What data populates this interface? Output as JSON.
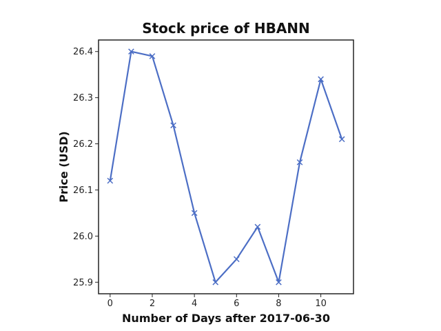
{
  "chart_data": {
    "type": "line",
    "title": "Stock price of HBANN",
    "xlabel": "Number of Days after 2017-06-30",
    "ylabel": "Price (USD)",
    "x": [
      0,
      1,
      2,
      3,
      4,
      5,
      6,
      7,
      8,
      9,
      10,
      11
    ],
    "series": [
      {
        "values": [
          26.12,
          26.4,
          26.39,
          26.24,
          26.05,
          25.9,
          25.95,
          26.02,
          25.9,
          26.16,
          26.34,
          26.21
        ],
        "color": "#4c6ec5",
        "marker": "x"
      }
    ],
    "xlim": [
      -0.55,
      11.55
    ],
    "ylim": [
      25.875,
      26.425
    ],
    "xticks": [
      "0",
      "2",
      "4",
      "6",
      "8",
      "10"
    ],
    "yticks": [
      "25.9",
      "26.0",
      "26.1",
      "26.2",
      "26.3",
      "26.4"
    ],
    "grid": false,
    "legend": "none"
  }
}
